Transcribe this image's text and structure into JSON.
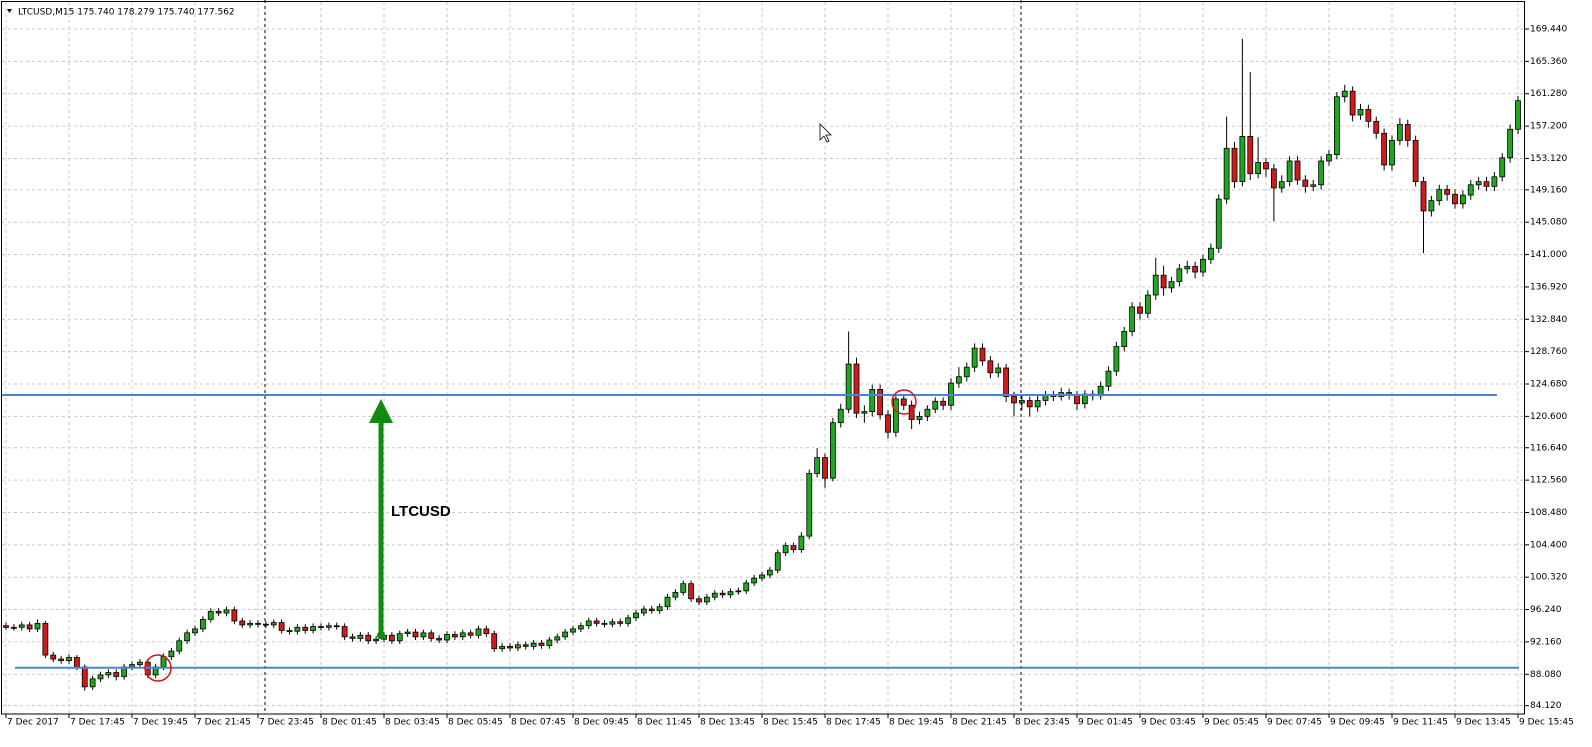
{
  "chart_data": {
    "type": "candlestick",
    "title": "LTCUSD,M15  175.740 178.279 175.740 177.562",
    "up_color": "#1fa81f",
    "down_color": "#d11a1a",
    "grid": true,
    "grid_color": "#c8c8c8",
    "ylim": [
      83.07,
      173.1
    ],
    "yticks": [
      {
        "value": 169.44,
        "label": "169.440"
      },
      {
        "value": 165.36,
        "label": "165.360"
      },
      {
        "value": 161.28,
        "label": "161.280"
      },
      {
        "value": 157.2,
        "label": "157.200"
      },
      {
        "value": 153.12,
        "label": "153.120"
      },
      {
        "value": 149.16,
        "label": "149.160"
      },
      {
        "value": 145.08,
        "label": "145.080"
      },
      {
        "value": 141,
        "label": "141.000"
      },
      {
        "value": 136.92,
        "label": "136.920"
      },
      {
        "value": 132.84,
        "label": "132.840"
      },
      {
        "value": 128.76,
        "label": "128.760"
      },
      {
        "value": 124.68,
        "label": "124.680"
      },
      {
        "value": 120.6,
        "label": "120.600"
      },
      {
        "value": 116.64,
        "label": "116.640"
      },
      {
        "value": 112.56,
        "label": "112.560"
      },
      {
        "value": 108.48,
        "label": "108.480"
      },
      {
        "value": 104.4,
        "label": "104.400"
      },
      {
        "value": 100.32,
        "label": "100.320"
      },
      {
        "value": 96.24,
        "label": "96.240"
      },
      {
        "value": 92.16,
        "label": "92.160"
      },
      {
        "value": 88.08,
        "label": "88.080"
      },
      {
        "value": 84.12,
        "label": "84.120"
      }
    ],
    "xticks": [
      {
        "value": 0,
        "label": "7 Dec 2017"
      },
      {
        "value": 8,
        "label": "7 Dec 17:45"
      },
      {
        "value": 16,
        "label": "7 Dec 19:45"
      },
      {
        "value": 24,
        "label": "7 Dec 21:45"
      },
      {
        "value": 32,
        "label": "7 Dec 23:45"
      },
      {
        "value": 40,
        "label": "8 Dec 01:45"
      },
      {
        "value": 48,
        "label": "8 Dec 03:45"
      },
      {
        "value": 56,
        "label": "8 Dec 05:45"
      },
      {
        "value": 64,
        "label": "8 Dec 07:45"
      },
      {
        "value": 72,
        "label": "8 Dec 09:45"
      },
      {
        "value": 80,
        "label": "8 Dec 11:45"
      },
      {
        "value": 88,
        "label": "8 Dec 13:45"
      },
      {
        "value": 96,
        "label": "8 Dec 15:45"
      },
      {
        "value": 104,
        "label": "8 Dec 17:45"
      },
      {
        "value": 112,
        "label": "8 Dec 19:45"
      },
      {
        "value": 120,
        "label": "8 Dec 21:45"
      },
      {
        "value": 128,
        "label": "8 Dec 23:45"
      },
      {
        "value": 136,
        "label": "9 Dec 01:45"
      },
      {
        "value": 144,
        "label": "9 Dec 03:45"
      },
      {
        "value": 152,
        "label": "9 Dec 05:45"
      },
      {
        "value": 160,
        "label": "9 Dec 07:45"
      },
      {
        "value": 168,
        "label": "9 Dec 09:45"
      },
      {
        "value": 176,
        "label": "9 Dec 11:45"
      },
      {
        "value": 184,
        "label": "9 Dec 13:45"
      },
      {
        "value": 192,
        "label": "9 Dec 15:45"
      }
    ],
    "hlines": [
      123.3,
      88.9
    ],
    "arrow": {
      "label": "LTCUSD",
      "from": 93.0,
      "to": 123.3,
      "color": "#108a10"
    },
    "ohlc": [
      [
        94.2,
        94.6,
        93.7,
        94.0
      ],
      [
        94.0,
        94.4,
        93.6,
        94.0
      ],
      [
        94.0,
        94.7,
        93.6,
        94.3
      ],
      [
        94.3,
        94.7,
        93.4,
        93.8
      ],
      [
        93.8,
        95.0,
        93.4,
        94.5
      ],
      [
        94.5,
        94.8,
        90.1,
        90.5
      ],
      [
        90.5,
        90.9,
        89.6,
        90.0
      ],
      [
        90.0,
        90.4,
        89.4,
        89.8
      ],
      [
        89.8,
        90.6,
        89.4,
        90.2
      ],
      [
        90.2,
        90.5,
        88.6,
        89.0
      ],
      [
        89.0,
        89.3,
        86.0,
        86.5
      ],
      [
        86.5,
        87.9,
        86.1,
        87.5
      ],
      [
        87.5,
        88.4,
        87.1,
        88.0
      ],
      [
        88.0,
        88.7,
        87.6,
        88.3
      ],
      [
        88.3,
        88.7,
        87.3,
        87.8
      ],
      [
        87.8,
        89.4,
        87.4,
        89.0
      ],
      [
        89.0,
        89.7,
        88.6,
        89.3
      ],
      [
        89.3,
        90.0,
        88.9,
        89.6
      ],
      [
        89.6,
        90.0,
        87.6,
        88.0
      ],
      [
        88.0,
        89.4,
        87.6,
        89.0
      ],
      [
        89.0,
        90.7,
        88.6,
        90.3
      ],
      [
        90.3,
        91.4,
        89.9,
        91.0
      ],
      [
        91.0,
        92.7,
        90.6,
        92.3
      ],
      [
        92.3,
        93.7,
        91.9,
        93.3
      ],
      [
        93.3,
        94.2,
        92.9,
        93.8
      ],
      [
        93.8,
        95.4,
        93.4,
        95.0
      ],
      [
        95.0,
        96.4,
        94.6,
        96.0
      ],
      [
        96.0,
        96.4,
        95.4,
        95.8
      ],
      [
        95.8,
        96.6,
        95.4,
        96.2
      ],
      [
        96.2,
        96.6,
        94.4,
        94.8
      ],
      [
        94.8,
        95.2,
        93.9,
        94.3
      ],
      [
        94.3,
        94.9,
        93.9,
        94.5
      ],
      [
        94.5,
        94.9,
        94.0,
        94.4
      ],
      [
        94.4,
        94.8,
        93.9,
        94.3
      ],
      [
        94.3,
        95.0,
        93.9,
        94.6
      ],
      [
        94.6,
        95.0,
        93.2,
        93.6
      ],
      [
        93.6,
        94.0,
        93.1,
        93.5
      ],
      [
        93.5,
        94.4,
        93.1,
        94.0
      ],
      [
        94.0,
        94.4,
        93.2,
        93.6
      ],
      [
        93.6,
        94.5,
        93.2,
        94.1
      ],
      [
        94.1,
        94.5,
        93.6,
        94.0
      ],
      [
        94.0,
        94.6,
        93.6,
        94.2
      ],
      [
        94.2,
        94.6,
        93.7,
        94.1
      ],
      [
        94.1,
        94.5,
        92.4,
        92.8
      ],
      [
        92.8,
        93.2,
        92.2,
        92.6
      ],
      [
        92.6,
        93.4,
        92.2,
        93.0
      ],
      [
        93.0,
        93.4,
        91.9,
        92.3
      ],
      [
        92.3,
        92.9,
        91.9,
        92.5
      ],
      [
        92.5,
        93.4,
        92.1,
        93.0
      ],
      [
        93.0,
        93.4,
        91.9,
        92.3
      ],
      [
        92.3,
        93.6,
        91.9,
        93.2
      ],
      [
        93.2,
        93.8,
        92.8,
        93.4
      ],
      [
        93.4,
        93.8,
        92.4,
        92.8
      ],
      [
        92.8,
        93.7,
        92.4,
        93.3
      ],
      [
        93.3,
        93.7,
        92.2,
        92.6
      ],
      [
        92.6,
        93.0,
        92.0,
        92.4
      ],
      [
        92.4,
        93.5,
        92.0,
        93.1
      ],
      [
        93.1,
        93.5,
        92.4,
        92.8
      ],
      [
        92.8,
        93.7,
        92.4,
        93.3
      ],
      [
        93.3,
        93.7,
        92.6,
        93.0
      ],
      [
        93.0,
        94.2,
        92.6,
        93.8
      ],
      [
        93.8,
        94.2,
        92.8,
        93.2
      ],
      [
        93.2,
        93.6,
        90.9,
        91.3
      ],
      [
        91.3,
        92.0,
        90.9,
        91.6
      ],
      [
        91.6,
        92.0,
        91.0,
        91.4
      ],
      [
        91.4,
        92.2,
        91.0,
        91.8
      ],
      [
        91.8,
        92.2,
        91.2,
        91.6
      ],
      [
        91.6,
        92.4,
        91.2,
        92.0
      ],
      [
        92.0,
        92.4,
        91.3,
        91.7
      ],
      [
        91.7,
        92.8,
        91.3,
        92.4
      ],
      [
        92.4,
        93.2,
        92.0,
        92.8
      ],
      [
        92.8,
        93.8,
        92.4,
        93.4
      ],
      [
        93.4,
        94.2,
        93.0,
        93.8
      ],
      [
        93.8,
        94.6,
        93.4,
        94.2
      ],
      [
        94.2,
        95.2,
        93.8,
        94.8
      ],
      [
        94.8,
        95.2,
        94.1,
        94.5
      ],
      [
        94.5,
        94.9,
        94.0,
        94.4
      ],
      [
        94.4,
        95.1,
        94.0,
        94.7
      ],
      [
        94.7,
        95.1,
        94.1,
        94.5
      ],
      [
        94.5,
        95.6,
        94.1,
        95.2
      ],
      [
        95.2,
        96.2,
        94.8,
        95.8
      ],
      [
        95.8,
        96.7,
        95.4,
        96.3
      ],
      [
        96.3,
        96.7,
        95.7,
        96.1
      ],
      [
        96.1,
        97.0,
        95.7,
        96.6
      ],
      [
        96.6,
        98.2,
        96.2,
        97.8
      ],
      [
        97.8,
        98.8,
        97.4,
        98.4
      ],
      [
        98.4,
        99.9,
        98.0,
        99.5
      ],
      [
        99.5,
        99.9,
        97.2,
        97.6
      ],
      [
        97.6,
        98.0,
        96.8,
        97.2
      ],
      [
        97.2,
        98.2,
        96.8,
        97.8
      ],
      [
        97.8,
        98.7,
        97.4,
        98.3
      ],
      [
        98.3,
        98.7,
        97.7,
        98.1
      ],
      [
        98.1,
        98.9,
        97.7,
        98.5
      ],
      [
        98.5,
        99.0,
        98.1,
        98.6
      ],
      [
        98.6,
        100.0,
        98.2,
        99.6
      ],
      [
        99.6,
        100.6,
        99.2,
        100.2
      ],
      [
        100.2,
        101.0,
        99.8,
        100.6
      ],
      [
        100.6,
        101.6,
        100.2,
        101.2
      ],
      [
        101.2,
        103.8,
        100.8,
        103.4
      ],
      [
        103.4,
        104.7,
        103.0,
        104.3
      ],
      [
        104.3,
        104.7,
        103.4,
        103.8
      ],
      [
        103.8,
        106.0,
        103.4,
        105.5
      ],
      [
        105.5,
        113.9,
        105.1,
        113.4
      ],
      [
        113.4,
        116.6,
        112.9,
        115.4
      ],
      [
        115.4,
        115.9,
        111.6,
        112.8
      ],
      [
        112.8,
        120.4,
        112.4,
        119.8
      ],
      [
        119.8,
        122.2,
        119.2,
        121.5
      ],
      [
        121.5,
        131.3,
        121.0,
        127.2
      ],
      [
        127.2,
        128.0,
        120.4,
        121.0
      ],
      [
        121.0,
        122.0,
        119.8,
        121.2
      ],
      [
        121.2,
        124.6,
        120.6,
        124.0
      ],
      [
        124.0,
        124.6,
        120.2,
        120.8
      ],
      [
        120.8,
        121.4,
        117.8,
        118.6
      ],
      [
        118.6,
        123.4,
        118.0,
        122.8
      ],
      [
        122.8,
        123.4,
        121.4,
        122.0
      ],
      [
        122.0,
        122.6,
        119.0,
        120.2
      ],
      [
        120.2,
        121.2,
        119.6,
        120.6
      ],
      [
        120.6,
        122.0,
        120.0,
        121.5
      ],
      [
        121.5,
        123.0,
        121.0,
        122.5
      ],
      [
        122.5,
        123.0,
        121.4,
        122.0
      ],
      [
        122.0,
        125.4,
        121.4,
        124.8
      ],
      [
        124.8,
        126.8,
        124.2,
        125.6
      ],
      [
        125.6,
        127.4,
        125.0,
        126.8
      ],
      [
        126.8,
        129.8,
        126.2,
        129.2
      ],
      [
        129.2,
        129.8,
        127.0,
        127.6
      ],
      [
        127.6,
        128.2,
        125.4,
        126.1
      ],
      [
        126.1,
        127.3,
        125.5,
        126.7
      ],
      [
        126.7,
        127.2,
        122.4,
        123.1
      ],
      [
        123.1,
        123.7,
        120.6,
        122.3
      ],
      [
        122.3,
        123.2,
        121.4,
        122.6
      ],
      [
        122.6,
        123.1,
        120.6,
        121.8
      ],
      [
        121.8,
        123.2,
        121.2,
        122.6
      ],
      [
        122.6,
        123.8,
        122.0,
        123.3
      ],
      [
        123.3,
        123.8,
        122.5,
        123.1
      ],
      [
        123.1,
        124.2,
        122.6,
        123.6
      ],
      [
        123.6,
        124.1,
        122.7,
        123.3
      ],
      [
        123.3,
        123.8,
        121.4,
        122.2
      ],
      [
        122.2,
        123.9,
        121.6,
        123.4
      ],
      [
        123.4,
        123.9,
        122.6,
        123.2
      ],
      [
        123.2,
        125.0,
        122.7,
        124.4
      ],
      [
        124.4,
        126.9,
        123.8,
        126.3
      ],
      [
        126.3,
        130.0,
        125.7,
        129.4
      ],
      [
        129.4,
        131.9,
        128.8,
        131.3
      ],
      [
        131.3,
        135.0,
        130.7,
        134.4
      ],
      [
        134.4,
        135.0,
        132.8,
        133.6
      ],
      [
        133.6,
        136.5,
        133.0,
        135.9
      ],
      [
        135.9,
        140.6,
        135.3,
        138.4
      ],
      [
        138.4,
        139.6,
        135.8,
        136.8
      ],
      [
        136.8,
        138.2,
        136.2,
        137.6
      ],
      [
        137.6,
        139.8,
        137.0,
        139.2
      ],
      [
        139.2,
        140.2,
        138.6,
        139.5
      ],
      [
        139.5,
        140.1,
        138.0,
        138.8
      ],
      [
        138.8,
        141.0,
        138.2,
        140.4
      ],
      [
        140.4,
        142.4,
        139.8,
        141.8
      ],
      [
        141.8,
        148.6,
        141.2,
        148.0
      ],
      [
        148.0,
        158.4,
        147.4,
        154.4
      ],
      [
        154.4,
        155.2,
        149.4,
        150.2
      ],
      [
        150.2,
        168.2,
        149.6,
        155.9
      ],
      [
        155.9,
        164.0,
        150.4,
        151.2
      ],
      [
        151.2,
        155.8,
        150.6,
        152.6
      ],
      [
        152.6,
        153.2,
        150.8,
        151.8
      ],
      [
        151.8,
        152.4,
        145.2,
        149.4
      ],
      [
        149.4,
        151.0,
        148.8,
        150.2
      ],
      [
        150.2,
        153.4,
        149.6,
        152.8
      ],
      [
        152.8,
        153.4,
        149.8,
        150.4
      ],
      [
        150.4,
        151.0,
        148.8,
        149.6
      ],
      [
        149.6,
        150.4,
        149.0,
        149.8
      ],
      [
        149.8,
        153.4,
        149.2,
        152.8
      ],
      [
        152.8,
        154.2,
        152.2,
        153.6
      ],
      [
        153.6,
        161.5,
        153.0,
        160.9
      ],
      [
        160.9,
        162.4,
        160.2,
        161.6
      ],
      [
        161.6,
        162.2,
        157.8,
        158.6
      ],
      [
        158.6,
        160.0,
        158.0,
        159.3
      ],
      [
        159.3,
        159.9,
        157.0,
        157.8
      ],
      [
        157.8,
        158.4,
        155.6,
        156.3
      ],
      [
        156.3,
        156.9,
        151.6,
        152.3
      ],
      [
        152.3,
        156.0,
        151.6,
        155.4
      ],
      [
        155.4,
        158.2,
        154.8,
        157.4
      ],
      [
        157.4,
        158.0,
        154.6,
        155.4
      ],
      [
        155.4,
        156.0,
        149.6,
        150.2
      ],
      [
        150.2,
        150.8,
        141.2,
        146.5
      ],
      [
        146.5,
        148.4,
        145.8,
        147.8
      ],
      [
        147.8,
        149.8,
        147.2,
        149.2
      ],
      [
        149.2,
        149.8,
        147.8,
        148.6
      ],
      [
        148.6,
        149.2,
        146.8,
        147.4
      ],
      [
        147.4,
        149.1,
        146.8,
        148.5
      ],
      [
        148.5,
        150.4,
        147.9,
        149.8
      ],
      [
        149.8,
        150.8,
        149.2,
        150.2
      ],
      [
        150.2,
        150.8,
        149.0,
        149.6
      ],
      [
        149.6,
        151.4,
        149.0,
        150.8
      ],
      [
        150.8,
        153.8,
        150.2,
        153.2
      ],
      [
        153.2,
        157.4,
        152.6,
        156.8
      ],
      [
        156.8,
        161.0,
        156.2,
        160.4
      ]
    ]
  }
}
